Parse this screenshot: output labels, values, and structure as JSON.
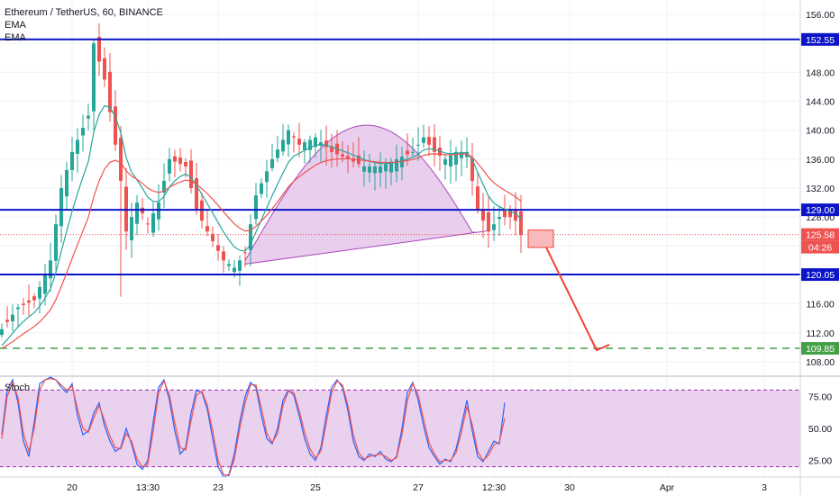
{
  "chart_data": [
    {
      "type": "candlestick",
      "title": "Ethereum / TetherUS, 60, BINANCE",
      "indicators": [
        "EMA",
        "EMA"
      ],
      "ylim": [
        106,
        158
      ],
      "y_ticks": [
        108,
        112,
        116,
        120,
        124,
        128,
        132,
        136,
        140,
        144,
        148,
        152,
        156
      ],
      "y_tick_labels": [
        "108.00",
        "112.00",
        "116.00",
        "120.00",
        "",
        "128.00",
        "132.00",
        "136.00",
        "140.00",
        "144.00",
        "148.00",
        "",
        "156.00"
      ],
      "x_tick_labels": [
        {
          "label": "20",
          "index": 13
        },
        {
          "label": "13:30",
          "index": 27
        },
        {
          "label": "23",
          "index": 40
        },
        {
          "label": "25",
          "index": 58
        },
        {
          "label": "27",
          "index": 77
        },
        {
          "label": "12:30",
          "index": 91
        },
        {
          "label": "30",
          "index": 105
        },
        {
          "label": "Apr",
          "index": 123
        },
        {
          "label": "3",
          "index": 141
        }
      ],
      "price_path": [
        [
          0,
          112.5
        ],
        [
          3,
          115.5
        ],
        [
          6,
          116.5
        ],
        [
          9,
          122
        ],
        [
          11,
          132
        ],
        [
          13,
          137
        ],
        [
          16,
          142
        ],
        [
          17,
          152
        ],
        [
          19,
          147
        ],
        [
          21,
          138
        ],
        [
          22,
          133
        ],
        [
          23,
          126
        ],
        [
          25,
          130
        ],
        [
          27,
          127
        ],
        [
          29,
          130
        ],
        [
          31,
          136
        ],
        [
          34,
          135
        ],
        [
          36,
          129
        ],
        [
          38,
          126
        ],
        [
          41,
          122
        ],
        [
          43,
          121
        ],
        [
          45,
          123
        ],
        [
          47,
          131
        ],
        [
          50,
          136
        ],
        [
          53,
          140
        ],
        [
          55,
          138
        ],
        [
          58,
          139
        ],
        [
          61,
          137
        ],
        [
          64,
          136
        ],
        [
          67,
          135
        ],
        [
          70,
          135
        ],
        [
          73,
          136
        ],
        [
          76,
          137
        ],
        [
          78,
          139
        ],
        [
          80,
          137
        ],
        [
          82,
          136
        ],
        [
          84,
          137
        ],
        [
          86,
          137
        ],
        [
          87,
          133
        ],
        [
          88,
          129
        ],
        [
          90,
          126
        ],
        [
          92,
          128
        ],
        [
          94,
          128
        ],
        [
          95,
          127.5
        ],
        [
          96,
          125.5
        ]
      ],
      "horizontal_levels": [
        {
          "value": 152.55,
          "label": "152.55",
          "color": "#0c14c8",
          "style": "solid"
        },
        {
          "value": 129.0,
          "label": "129.00",
          "color": "#0c14c8",
          "style": "solid"
        },
        {
          "value": 120.05,
          "label": "120.05",
          "color": "#0c14c8",
          "style": "solid"
        },
        {
          "value": 109.85,
          "label": "109.85",
          "color": "#43a047",
          "style": "dashed"
        }
      ],
      "last_price": {
        "value": 125.58,
        "label": "125.58",
        "countdown": "04:26",
        "color": "#ef5350"
      },
      "colors": {
        "up": "#26a69a",
        "down": "#ef5350",
        "ema_fast": "#26a69a",
        "ema_slow": "#ef5350",
        "level": "#0c14c8",
        "arc_fill": "#e1bee7",
        "arc_line": "#ab47bc",
        "projection": "#f44336"
      }
    },
    {
      "type": "line",
      "title": "Stoch",
      "ylim": [
        12,
        88
      ],
      "y_ticks": [
        25,
        50,
        75
      ],
      "y_tick_labels": [
        "25.00",
        "50.00",
        "75.00"
      ],
      "band": [
        20,
        80
      ],
      "series": [
        {
          "values": [
            45,
            80,
            88,
            70,
            40,
            28,
            55,
            85,
            88,
            90,
            88,
            82,
            78,
            85,
            60,
            45,
            48,
            62,
            70,
            52,
            40,
            32,
            35,
            50,
            38,
            22,
            18,
            25,
            55,
            82,
            88,
            72,
            48,
            30,
            35,
            62,
            80,
            78,
            65,
            42,
            20,
            12,
            14,
            30,
            55,
            75,
            86,
            82,
            60,
            42,
            38,
            50,
            72,
            80,
            76,
            60,
            42,
            30,
            25,
            35,
            60,
            82,
            88,
            82,
            64,
            40,
            28,
            25,
            30,
            28,
            32,
            26,
            24,
            28,
            50,
            78,
            86,
            72,
            52,
            35,
            28,
            22,
            26,
            24,
            34,
            52,
            72,
            48,
            28,
            24,
            32,
            40,
            38,
            70
          ]
        },
        {
          "values": [
            42,
            75,
            86,
            74,
            46,
            32,
            50,
            80,
            88,
            89,
            88,
            84,
            80,
            83,
            65,
            50,
            47,
            58,
            68,
            56,
            44,
            35,
            34,
            46,
            40,
            26,
            20,
            22,
            48,
            78,
            87,
            76,
            54,
            35,
            33,
            56,
            76,
            79,
            68,
            48,
            25,
            14,
            13,
            26,
            50,
            70,
            84,
            84,
            66,
            46,
            39,
            46,
            68,
            79,
            78,
            64,
            47,
            34,
            27,
            32,
            54,
            78,
            87,
            84,
            68,
            45,
            31,
            26,
            28,
            29,
            30,
            28,
            25,
            27,
            45,
            72,
            85,
            76,
            57,
            39,
            30,
            24,
            25,
            25,
            31,
            47,
            67,
            53,
            32,
            25,
            29,
            37,
            39,
            58
          ]
        }
      ],
      "colors": {
        "k": "#2962ff",
        "d": "#ef5350",
        "band_fill": "#e1bee7",
        "band_line": "#9c27b0"
      }
    }
  ]
}
